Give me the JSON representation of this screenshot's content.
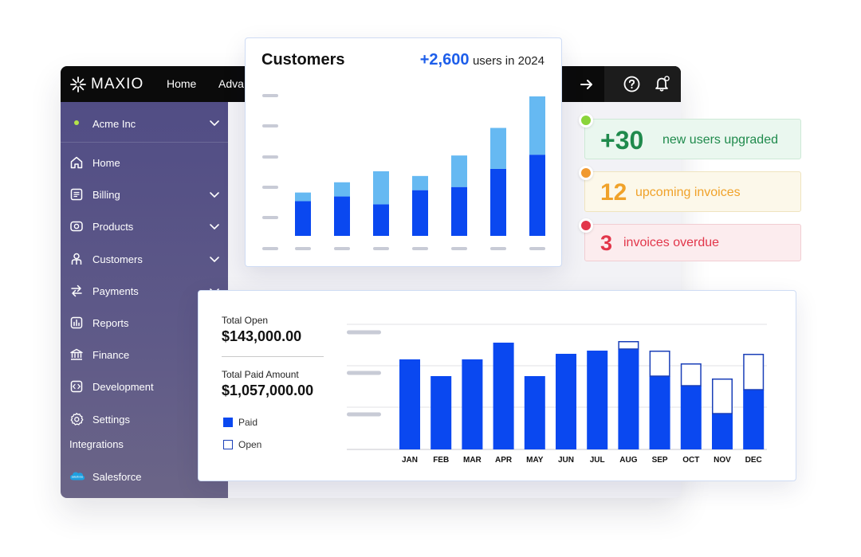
{
  "app": {
    "brand": "MAXIO",
    "nav": {
      "home": "Home",
      "advanced_truncated": "Adva"
    },
    "icons": {
      "arrow": "arrow-right-icon",
      "help": "help-circle-icon",
      "bell": "bell-icon"
    }
  },
  "sidebar": {
    "org_name": "Acme Inc",
    "org_status_color": "#b4e34a",
    "items": [
      {
        "label": "Home",
        "icon": "house-icon",
        "has_chevron": false
      },
      {
        "label": "Billing",
        "icon": "billing-icon",
        "has_chevron": true
      },
      {
        "label": "Products",
        "icon": "products-icon",
        "has_chevron": true
      },
      {
        "label": "Customers",
        "icon": "customers-icon",
        "has_chevron": true
      },
      {
        "label": "Payments",
        "icon": "payments-icon",
        "has_chevron": true
      },
      {
        "label": "Reports",
        "icon": "reports-icon",
        "has_chevron": false
      },
      {
        "label": "Finance",
        "icon": "finance-icon",
        "has_chevron": false
      },
      {
        "label": "Development",
        "icon": "development-icon",
        "has_chevron": false
      },
      {
        "label": "Settings",
        "icon": "gear-icon",
        "has_chevron": false
      }
    ],
    "integrations_label": "Integrations",
    "integration_item": {
      "label": "Salesforce",
      "icon": "salesforce-cloud-icon"
    }
  },
  "customers_card": {
    "title": "Customers",
    "stat_value": "+2,600",
    "stat_suffix": "users in 2024",
    "colors": {
      "base": "#0a48f0",
      "top": "#66b9f2"
    },
    "chart_data": {
      "type": "bar",
      "stacked": true,
      "categories": [
        "",
        "",
        "",
        "",
        "",
        "",
        ""
      ],
      "series": [
        {
          "values": [
            44,
            50,
            40,
            58,
            62,
            85,
            103
          ]
        },
        {
          "values": [
            11,
            18,
            42,
            18,
            40,
            52,
            74
          ]
        }
      ],
      "ylim": [
        0,
        180
      ],
      "grid": false
    }
  },
  "notices": {
    "upgraded": {
      "value": "+30",
      "label": "new users upgraded"
    },
    "upcoming": {
      "value": "12",
      "label": "upcoming invoices"
    },
    "overdue": {
      "value": "3",
      "label": "invoices overdue"
    }
  },
  "invoice_card": {
    "total_open_label": "Total Open",
    "total_open_value": "$143,000.00",
    "total_paid_label": "Total Paid Amount",
    "total_paid_value": "$1,057,000.00",
    "legend": {
      "paid": "Paid",
      "open": "Open"
    },
    "colors": {
      "paid": "#0a48f0",
      "open_border": "#1a3fb8"
    },
    "chart_data": {
      "type": "bar",
      "stacked": true,
      "categories": [
        "JAN",
        "FEB",
        "MAR",
        "APR",
        "MAY",
        "JUN",
        "JUL",
        "AUG",
        "SEP",
        "OCT",
        "NOV",
        "DEC"
      ],
      "series": [
        {
          "name": "Paid",
          "values": [
            113,
            92,
            113,
            134,
            92,
            120,
            124,
            126,
            92,
            80,
            45,
            75
          ]
        },
        {
          "name": "Open",
          "values": [
            0,
            0,
            0,
            0,
            0,
            0,
            0,
            10,
            32,
            28,
            44,
            45
          ]
        }
      ],
      "ylim": [
        0,
        160
      ],
      "grid": true
    }
  }
}
